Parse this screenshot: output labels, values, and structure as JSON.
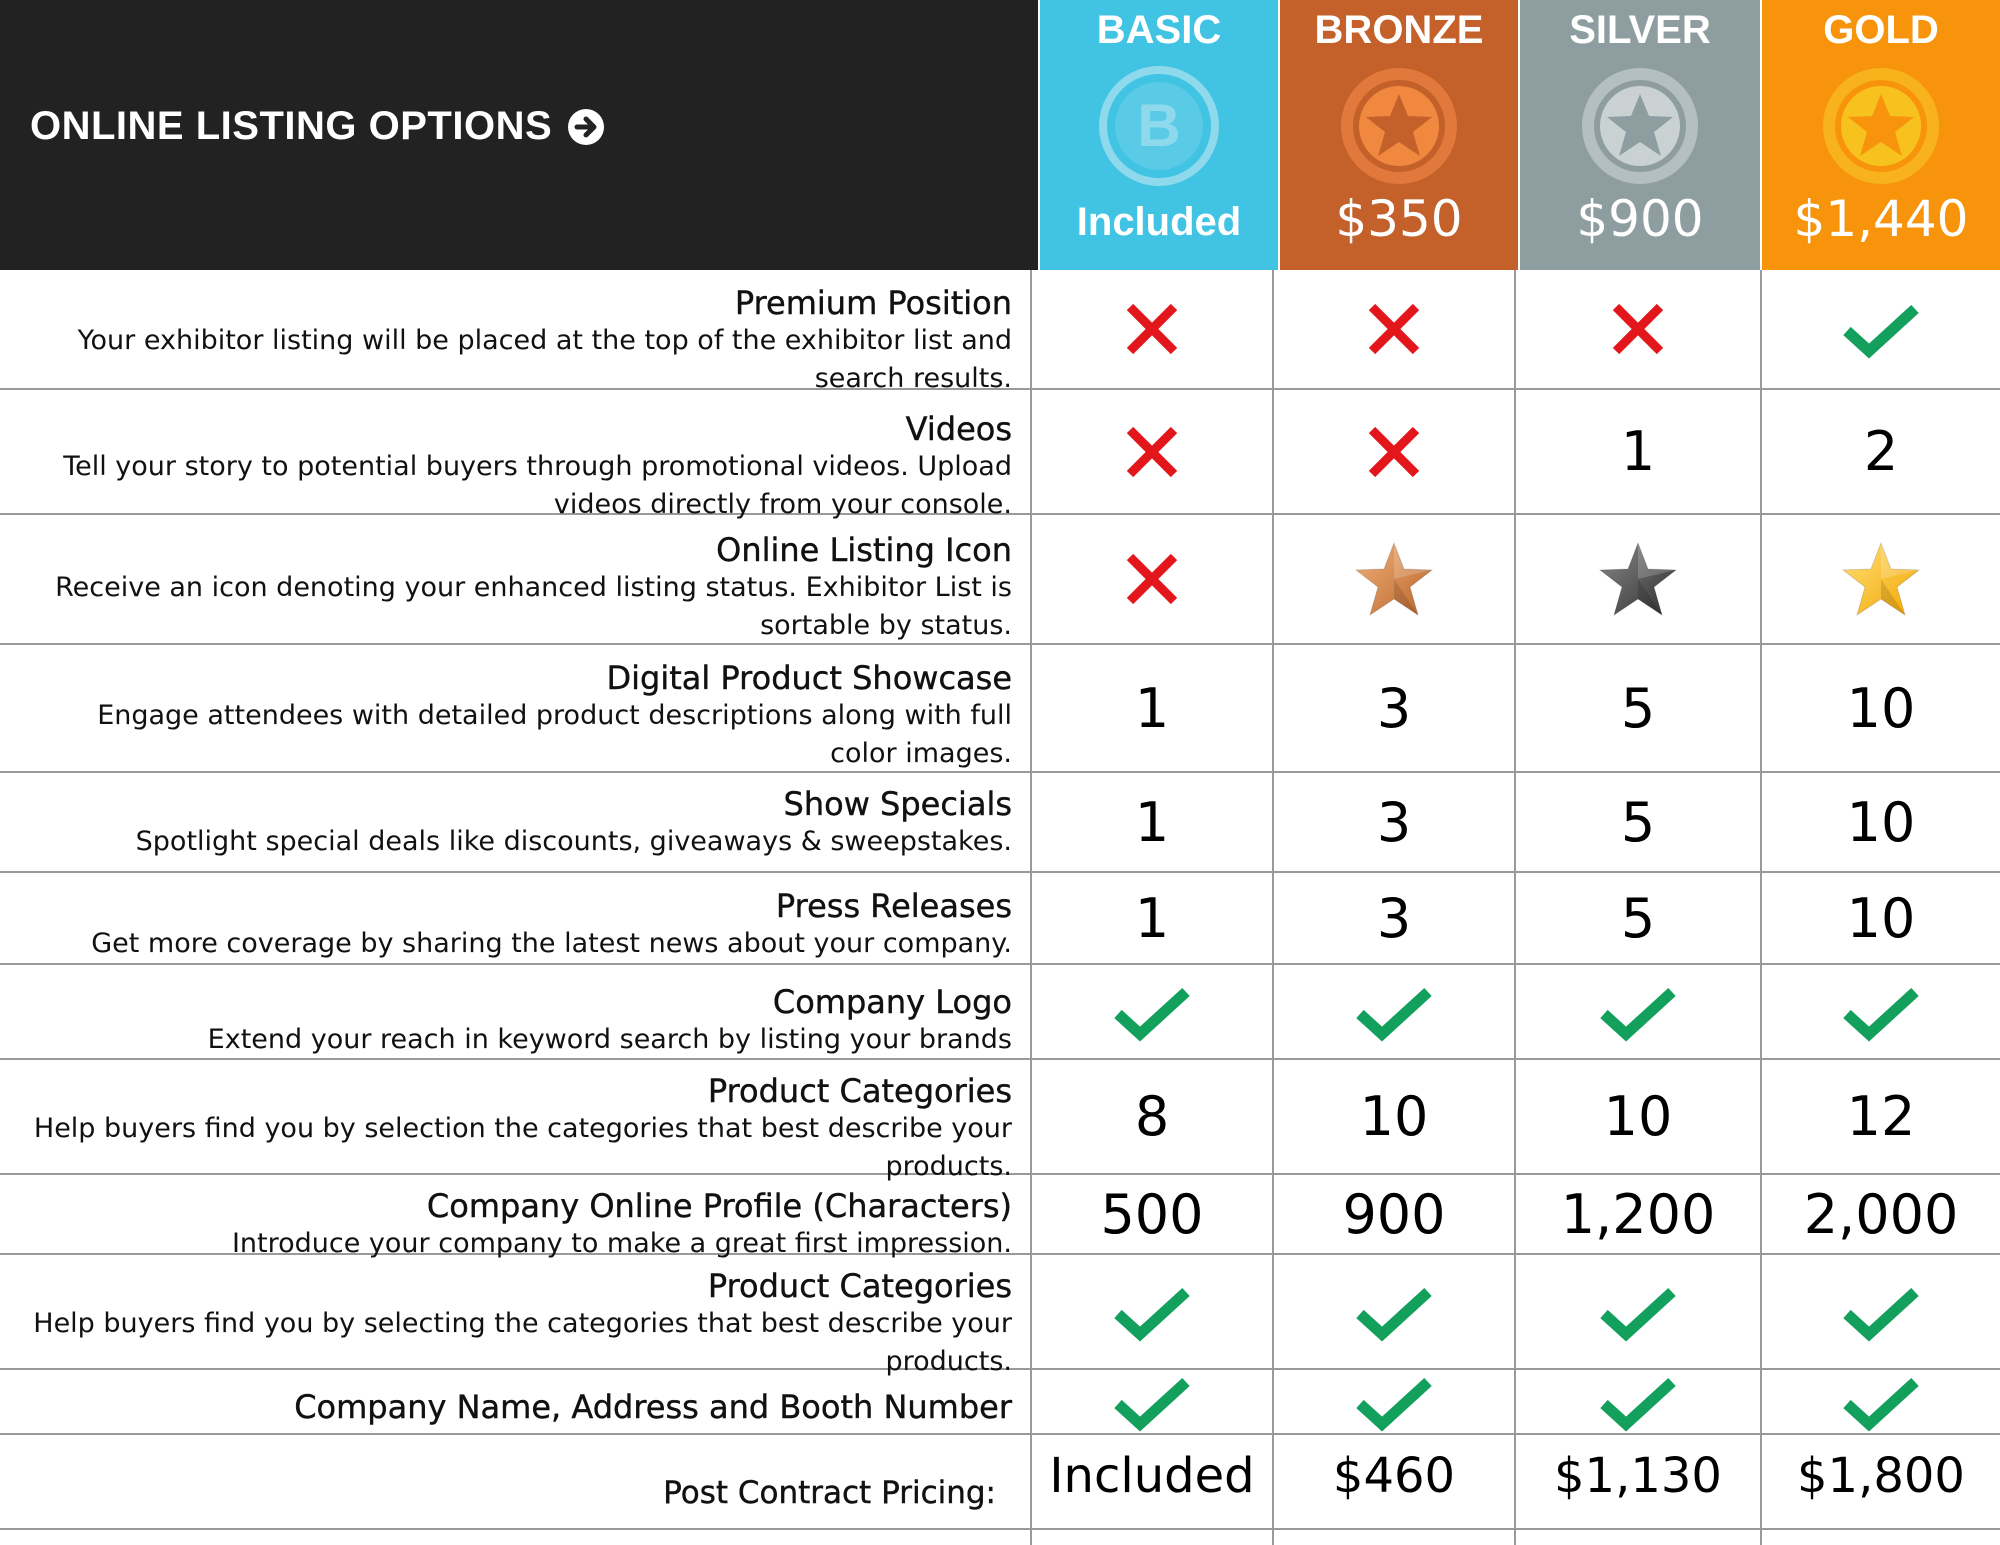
{
  "header": {
    "title": "ONLINE LISTING OPTIONS",
    "arrow_icon": "arrow-right-circle-icon"
  },
  "tiers": [
    {
      "name": "BASIC",
      "price": "Included",
      "color": "#41c3e3",
      "medal": "letter-b-medal-icon"
    },
    {
      "name": "BRONZE",
      "price": "$350",
      "color": "#c4602a",
      "medal": "bronze-star-medal-icon"
    },
    {
      "name": "SILVER",
      "price": "$900",
      "color": "#8e9d9f",
      "medal": "silver-star-medal-icon"
    },
    {
      "name": "GOLD",
      "price": "$1,440",
      "color": "#f7940c",
      "medal": "gold-star-medal-icon"
    }
  ],
  "features": [
    {
      "title": "Premium Position",
      "desc": [
        "Your exhibitor listing will be placed at the top of the exhibitor list and",
        "search results."
      ],
      "values": [
        "x",
        "x",
        "x",
        "check"
      ]
    },
    {
      "title": "Videos",
      "desc": [
        "Tell your story to potential buyers through promotional videos. Upload",
        "videos directly from your console."
      ],
      "values": [
        "x",
        "x",
        "1",
        "2"
      ]
    },
    {
      "title": "Online Listing Icon",
      "desc": [
        "Receive an icon denoting your enhanced listing status. Exhibitor List is",
        "sortable by status."
      ],
      "values": [
        "x",
        "star-bronze",
        "star-silver",
        "star-gold"
      ]
    },
    {
      "title": "Digital Product Showcase",
      "desc": [
        "Engage attendees with detailed product descriptions along with full",
        "color images."
      ],
      "values": [
        "1",
        "3",
        "5",
        "10"
      ]
    },
    {
      "title": "Show Specials",
      "desc": [
        "Spotlight special deals like discounts, giveaways & sweepstakes."
      ],
      "values": [
        "1",
        "3",
        "5",
        "10"
      ]
    },
    {
      "title": "Press Releases",
      "desc": [
        "Get more coverage by sharing the latest news about your company."
      ],
      "values": [
        "1",
        "3",
        "5",
        "10"
      ]
    },
    {
      "title": "Company Logo",
      "desc": [
        "Extend your reach in keyword search by listing your brands"
      ],
      "values": [
        "check",
        "check",
        "check",
        "check"
      ]
    },
    {
      "title": "Product Categories",
      "desc": [
        "Help buyers find you by selection the categories that best describe your",
        "products."
      ],
      "values": [
        "8",
        "10",
        "10",
        "12"
      ]
    },
    {
      "title": "Company Online Profile (Characters)",
      "desc": [
        "Introduce your company to make a great first impression."
      ],
      "values": [
        "500",
        "900",
        "1,200",
        "2,000"
      ]
    },
    {
      "title": "Product Categories",
      "desc": [
        "Help buyers find you by selecting the categories that best describe your",
        "products."
      ],
      "values": [
        "check",
        "check",
        "check",
        "check"
      ]
    },
    {
      "title": "Company Name, Address and Booth Number",
      "desc": [],
      "values": [
        "check",
        "check",
        "check",
        "check"
      ]
    },
    {
      "title": "Post Contract Pricing:",
      "desc": [],
      "values": [
        "Included",
        "$460",
        "$1,130",
        "$1,800"
      ]
    }
  ],
  "colors": {
    "x_mark": "#e3161c",
    "check_mark": "#12a05c",
    "header_bg": "#222222"
  }
}
